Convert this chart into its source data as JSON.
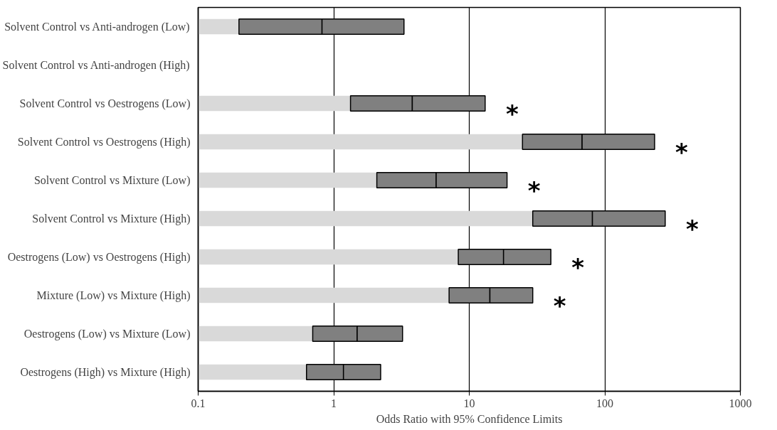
{
  "chart_data": {
    "type": "bar",
    "orientation": "horizontal",
    "log": "x",
    "xlabel": "Odds Ratio with 95% Confidence Limits",
    "categories": [
      "Solvent Control vs Anti-androgen (Low)",
      "Solvent Control vs Anti-androgen (High)",
      "Solvent Control vs Oestrogens (Low)",
      "Solvent Control vs Oestrogens (High)",
      "Solvent Control vs Mixture (Low)",
      "Solvent Control vs Mixture (High)",
      "Oestrogens (Low) vs Oestrogens (High)",
      "Mixture (Low) vs Mixture (High)",
      "Oestrogens (Low) vs Mixture (Low)",
      "Oestrogens (High) vs Mixture (High)"
    ],
    "series": [
      {
        "color": "#d9d9d9",
        "base": [
          0.1,
          null,
          0.1,
          0.1,
          0.1,
          0.1,
          0.1,
          0.1,
          0.1,
          0.1
        ],
        "values": [
          0.1,
          null,
          1.23,
          24.6,
          1.98,
          29.3,
          8.2,
          7.0,
          0.6,
          0.53
        ]
      },
      {
        "color": "#808080",
        "base": [
          0.2,
          null,
          1.33,
          24.7,
          2.08,
          29.4,
          8.3,
          7.1,
          0.7,
          0.63
        ],
        "values": [
          0.62,
          null,
          2.47,
          43.3,
          3.62,
          51.6,
          9.6,
          7.1,
          0.79,
          0.55
        ]
      },
      {
        "color": "#808080",
        "base": [
          0.82,
          null,
          3.8,
          68,
          5.7,
          81,
          17.9,
          14.2,
          1.49,
          1.18
        ],
        "values": [
          2.48,
          null,
          9.3,
          165,
          13.3,
          198,
          22.1,
          15.2,
          1.73,
          1.04
        ]
      }
    ],
    "xlim": [
      0.1,
      1000
    ],
    "xticks": [
      0.1,
      1,
      10,
      100,
      1000
    ],
    "grid": "x",
    "annotations": [
      {
        "text": "*",
        "x": 13.1,
        "y": "Solvent Control vs Oestrogens (Low)"
      },
      {
        "text": "*",
        "x": 233,
        "y": "Solvent Control vs Oestrogens (High)"
      },
      {
        "text": "*",
        "x": 19,
        "y": "Solvent Control vs Mixture (Low)"
      },
      {
        "text": "*",
        "x": 279,
        "y": "Solvent Control vs Mixture (High)"
      },
      {
        "text": "*",
        "x": 40,
        "y": "Oestrogens (Low) vs Oestrogens (High)"
      },
      {
        "text": "*",
        "x": 29.4,
        "y": "Mixture (Low) vs Mixture (High)"
      }
    ]
  }
}
